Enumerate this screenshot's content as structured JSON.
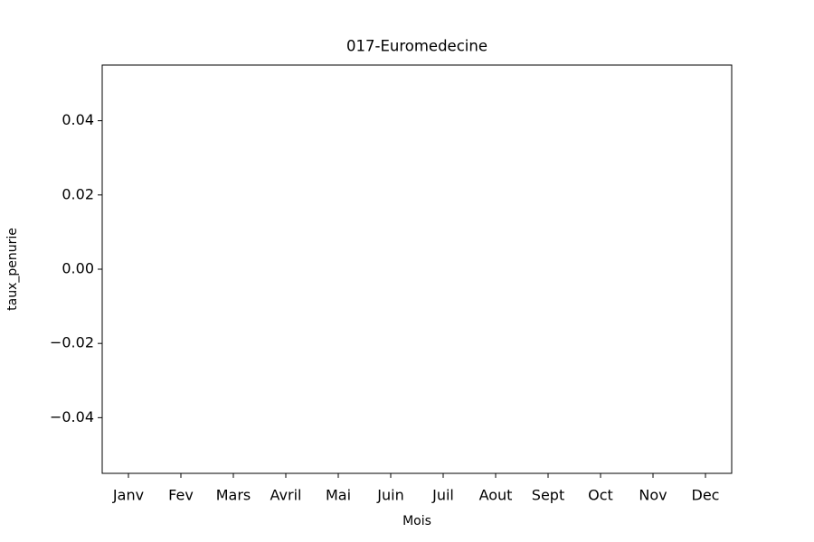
{
  "chart_data": {
    "type": "bar",
    "title": "017-Euromedecine",
    "xlabel": "Mois",
    "ylabel": "taux_penurie",
    "categories": [
      "Janv",
      "Fev",
      "Mars",
      "Avril",
      "Mai",
      "Juin",
      "Juil",
      "Aout",
      "Sept",
      "Oct",
      "Nov",
      "Dec"
    ],
    "values": [
      0,
      0,
      0,
      0,
      0,
      0,
      0,
      0,
      0,
      0,
      0,
      0
    ],
    "color": "#1f77b4",
    "ylim": [
      -0.055,
      0.055
    ],
    "yticks": [
      {
        "value": -0.04,
        "label": "−0.04"
      },
      {
        "value": -0.02,
        "label": "−0.02"
      },
      {
        "value": 0,
        "label": "0.00"
      },
      0.02,
      0.04
    ],
    "grid": false
  }
}
